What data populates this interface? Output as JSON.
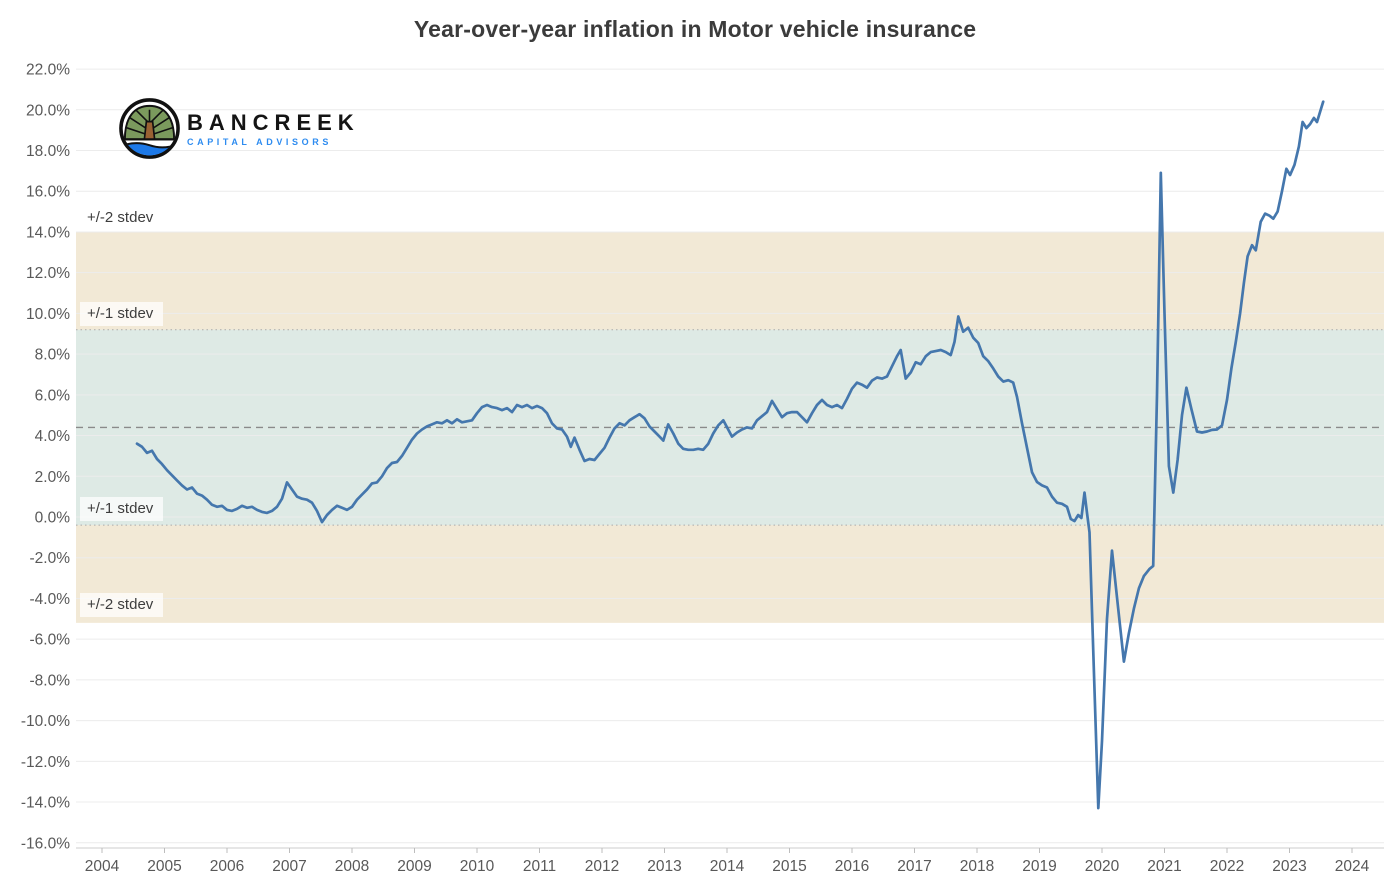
{
  "header": {
    "title": "Year-over-year inflation in Motor vehicle insurance"
  },
  "logo": {
    "name": "BANCREEK",
    "subtitle": "CAPITAL ADVISORS",
    "subtitle_color": "#2e8cf0",
    "icon": "tree-water-circle-logo"
  },
  "chart_data": {
    "type": "line",
    "title": "Year-over-year inflation in Motor vehicle insurance",
    "xlabel": "",
    "ylabel": "",
    "units": "%",
    "grid": true,
    "legend": false,
    "xlim": [
      2003.58,
      2024.5
    ],
    "ylim": [
      -16.3,
      22.6
    ],
    "x_ticks": [
      2004,
      2005,
      2006,
      2007,
      2008,
      2009,
      2010,
      2011,
      2012,
      2013,
      2014,
      2015,
      2016,
      2017,
      2018,
      2019,
      2020,
      2021,
      2022,
      2023,
      2024
    ],
    "x_tick_labels": [
      "2004",
      "2005",
      "2006",
      "2007",
      "2008",
      "2009",
      "2010",
      "2011",
      "2012",
      "2013",
      "2014",
      "2015",
      "2016",
      "2017",
      "2018",
      "2019",
      "2020",
      "2021",
      "2022",
      "2023",
      "2024"
    ],
    "y_ticks": [
      22,
      20,
      18,
      16,
      14,
      12,
      10,
      8,
      6,
      4,
      2,
      0,
      -2,
      -4,
      -6,
      -8,
      -10,
      -12,
      -14,
      -16
    ],
    "y_tick_labels": [
      "22.0%",
      "20.0%",
      "18.0%",
      "16.0%",
      "14.0%",
      "12.0%",
      "10.0%",
      "8.0%",
      "6.0%",
      "4.0%",
      "2.0%",
      "0.0%",
      "-2.0%",
      "-4.0%",
      "-6.0%",
      "-8.0%",
      "-10.0%",
      "-12.0%",
      "-14.0%",
      "-16.0%"
    ],
    "mean_line": {
      "value": 4.4,
      "style": "dashed",
      "color": "#8a8a8a"
    },
    "stdev": 4.8,
    "bands": [
      {
        "name": "plus-minus-2-stdev",
        "from": -5.2,
        "to": 14.0,
        "color": "#f2e9d6"
      },
      {
        "name": "plus-minus-1-stdev",
        "from": -0.4,
        "to": 9.2,
        "color": "#deeae5",
        "edge_dotted": true
      }
    ],
    "band_labels": [
      {
        "text": "+/-2 stdev",
        "at": 14.62
      },
      {
        "text": "+/-1 stdev",
        "at": 9.9
      },
      {
        "text": "+/-1 stdev",
        "at": 0.35
      },
      {
        "text": "+/-2 stdev",
        "at": -4.35
      }
    ],
    "series": [
      {
        "name": "Motor vehicle insurance YoY inflation (%)",
        "color": "#4577ad",
        "points": [
          [
            2004.56,
            3.6
          ],
          [
            2004.64,
            3.45
          ],
          [
            2004.72,
            3.15
          ],
          [
            2004.8,
            3.25
          ],
          [
            2004.88,
            2.85
          ],
          [
            2004.96,
            2.6
          ],
          [
            2005.04,
            2.3
          ],
          [
            2005.12,
            2.05
          ],
          [
            2005.2,
            1.8
          ],
          [
            2005.28,
            1.55
          ],
          [
            2005.36,
            1.35
          ],
          [
            2005.44,
            1.45
          ],
          [
            2005.52,
            1.15
          ],
          [
            2005.6,
            1.05
          ],
          [
            2005.68,
            0.85
          ],
          [
            2005.76,
            0.6
          ],
          [
            2005.84,
            0.5
          ],
          [
            2005.92,
            0.55
          ],
          [
            2006.0,
            0.35
          ],
          [
            2006.08,
            0.3
          ],
          [
            2006.16,
            0.4
          ],
          [
            2006.24,
            0.55
          ],
          [
            2006.32,
            0.45
          ],
          [
            2006.4,
            0.5
          ],
          [
            2006.48,
            0.35
          ],
          [
            2006.56,
            0.25
          ],
          [
            2006.64,
            0.2
          ],
          [
            2006.72,
            0.3
          ],
          [
            2006.8,
            0.5
          ],
          [
            2006.88,
            0.9
          ],
          [
            2006.96,
            1.7
          ],
          [
            2007.04,
            1.35
          ],
          [
            2007.12,
            1.0
          ],
          [
            2007.2,
            0.9
          ],
          [
            2007.28,
            0.85
          ],
          [
            2007.36,
            0.7
          ],
          [
            2007.44,
            0.3
          ],
          [
            2007.52,
            -0.25
          ],
          [
            2007.6,
            0.1
          ],
          [
            2007.68,
            0.35
          ],
          [
            2007.76,
            0.55
          ],
          [
            2007.84,
            0.45
          ],
          [
            2007.92,
            0.35
          ],
          [
            2008.0,
            0.5
          ],
          [
            2008.08,
            0.85
          ],
          [
            2008.16,
            1.1
          ],
          [
            2008.24,
            1.35
          ],
          [
            2008.32,
            1.65
          ],
          [
            2008.4,
            1.7
          ],
          [
            2008.48,
            2.0
          ],
          [
            2008.56,
            2.4
          ],
          [
            2008.64,
            2.65
          ],
          [
            2008.72,
            2.7
          ],
          [
            2008.8,
            3.0
          ],
          [
            2008.88,
            3.4
          ],
          [
            2008.96,
            3.8
          ],
          [
            2009.04,
            4.1
          ],
          [
            2009.12,
            4.3
          ],
          [
            2009.2,
            4.45
          ],
          [
            2009.28,
            4.55
          ],
          [
            2009.36,
            4.65
          ],
          [
            2009.44,
            4.6
          ],
          [
            2009.52,
            4.75
          ],
          [
            2009.6,
            4.6
          ],
          [
            2009.68,
            4.8
          ],
          [
            2009.76,
            4.65
          ],
          [
            2009.84,
            4.7
          ],
          [
            2009.92,
            4.75
          ],
          [
            2010.0,
            5.1
          ],
          [
            2010.08,
            5.4
          ],
          [
            2010.16,
            5.5
          ],
          [
            2010.24,
            5.4
          ],
          [
            2010.32,
            5.35
          ],
          [
            2010.4,
            5.25
          ],
          [
            2010.48,
            5.35
          ],
          [
            2010.56,
            5.15
          ],
          [
            2010.64,
            5.5
          ],
          [
            2010.72,
            5.4
          ],
          [
            2010.8,
            5.5
          ],
          [
            2010.88,
            5.35
          ],
          [
            2010.96,
            5.45
          ],
          [
            2011.04,
            5.35
          ],
          [
            2011.12,
            5.1
          ],
          [
            2011.2,
            4.6
          ],
          [
            2011.28,
            4.35
          ],
          [
            2011.36,
            4.3
          ],
          [
            2011.44,
            3.95
          ],
          [
            2011.5,
            3.45
          ],
          [
            2011.56,
            3.9
          ],
          [
            2011.64,
            3.3
          ],
          [
            2011.72,
            2.75
          ],
          [
            2011.8,
            2.85
          ],
          [
            2011.88,
            2.8
          ],
          [
            2011.96,
            3.1
          ],
          [
            2012.04,
            3.4
          ],
          [
            2012.12,
            3.9
          ],
          [
            2012.2,
            4.35
          ],
          [
            2012.28,
            4.6
          ],
          [
            2012.36,
            4.5
          ],
          [
            2012.44,
            4.75
          ],
          [
            2012.52,
            4.9
          ],
          [
            2012.6,
            5.05
          ],
          [
            2012.68,
            4.85
          ],
          [
            2012.76,
            4.45
          ],
          [
            2012.84,
            4.2
          ],
          [
            2012.92,
            3.95
          ],
          [
            2012.98,
            3.75
          ],
          [
            2013.06,
            4.55
          ],
          [
            2013.14,
            4.1
          ],
          [
            2013.22,
            3.6
          ],
          [
            2013.3,
            3.35
          ],
          [
            2013.38,
            3.3
          ],
          [
            2013.46,
            3.3
          ],
          [
            2013.54,
            3.35
          ],
          [
            2013.62,
            3.3
          ],
          [
            2013.7,
            3.6
          ],
          [
            2013.78,
            4.1
          ],
          [
            2013.86,
            4.5
          ],
          [
            2013.94,
            4.75
          ],
          [
            2014.02,
            4.3
          ],
          [
            2014.08,
            3.95
          ],
          [
            2014.16,
            4.15
          ],
          [
            2014.24,
            4.3
          ],
          [
            2014.32,
            4.4
          ],
          [
            2014.4,
            4.35
          ],
          [
            2014.48,
            4.75
          ],
          [
            2014.56,
            4.95
          ],
          [
            2014.64,
            5.15
          ],
          [
            2014.72,
            5.7
          ],
          [
            2014.8,
            5.3
          ],
          [
            2014.88,
            4.9
          ],
          [
            2014.96,
            5.1
          ],
          [
            2015.04,
            5.15
          ],
          [
            2015.12,
            5.15
          ],
          [
            2015.2,
            4.9
          ],
          [
            2015.28,
            4.65
          ],
          [
            2015.36,
            5.1
          ],
          [
            2015.44,
            5.5
          ],
          [
            2015.52,
            5.75
          ],
          [
            2015.6,
            5.5
          ],
          [
            2015.68,
            5.4
          ],
          [
            2015.76,
            5.5
          ],
          [
            2015.84,
            5.35
          ],
          [
            2015.92,
            5.8
          ],
          [
            2016.0,
            6.3
          ],
          [
            2016.08,
            6.6
          ],
          [
            2016.16,
            6.5
          ],
          [
            2016.24,
            6.35
          ],
          [
            2016.32,
            6.7
          ],
          [
            2016.4,
            6.85
          ],
          [
            2016.48,
            6.8
          ],
          [
            2016.56,
            6.9
          ],
          [
            2016.64,
            7.4
          ],
          [
            2016.72,
            7.9
          ],
          [
            2016.78,
            8.2
          ],
          [
            2016.86,
            6.8
          ],
          [
            2016.94,
            7.1
          ],
          [
            2017.02,
            7.6
          ],
          [
            2017.1,
            7.5
          ],
          [
            2017.18,
            7.9
          ],
          [
            2017.26,
            8.1
          ],
          [
            2017.34,
            8.15
          ],
          [
            2017.42,
            8.2
          ],
          [
            2017.5,
            8.1
          ],
          [
            2017.58,
            7.95
          ],
          [
            2017.64,
            8.6
          ],
          [
            2017.7,
            9.85
          ],
          [
            2017.78,
            9.1
          ],
          [
            2017.86,
            9.3
          ],
          [
            2017.94,
            8.8
          ],
          [
            2018.02,
            8.55
          ],
          [
            2018.1,
            7.9
          ],
          [
            2018.18,
            7.65
          ],
          [
            2018.26,
            7.3
          ],
          [
            2018.34,
            6.9
          ],
          [
            2018.42,
            6.65
          ],
          [
            2018.5,
            6.72
          ],
          [
            2018.58,
            6.6
          ],
          [
            2018.64,
            5.9
          ],
          [
            2018.72,
            4.6
          ],
          [
            2018.8,
            3.4
          ],
          [
            2018.88,
            2.2
          ],
          [
            2018.96,
            1.72
          ],
          [
            2019.04,
            1.55
          ],
          [
            2019.12,
            1.45
          ],
          [
            2019.2,
            1.0
          ],
          [
            2019.28,
            0.7
          ],
          [
            2019.36,
            0.65
          ],
          [
            2019.44,
            0.5
          ],
          [
            2019.5,
            -0.1
          ],
          [
            2019.56,
            -0.2
          ],
          [
            2019.62,
            0.1
          ],
          [
            2019.67,
            -0.05
          ],
          [
            2019.72,
            1.2
          ],
          [
            2019.76,
            0.2
          ],
          [
            2019.8,
            -0.75
          ],
          [
            2019.86,
            -6.5
          ],
          [
            2019.94,
            -14.3
          ],
          [
            2020.0,
            -11.0
          ],
          [
            2020.08,
            -5.0
          ],
          [
            2020.16,
            -1.65
          ],
          [
            2020.26,
            -4.5
          ],
          [
            2020.35,
            -7.1
          ],
          [
            2020.43,
            -5.7
          ],
          [
            2020.51,
            -4.5
          ],
          [
            2020.59,
            -3.5
          ],
          [
            2020.67,
            -2.9
          ],
          [
            2020.76,
            -2.55
          ],
          [
            2020.82,
            -2.4
          ],
          [
            2020.88,
            6.0
          ],
          [
            2020.94,
            16.9
          ],
          [
            2021.0,
            10.0
          ],
          [
            2021.07,
            2.5
          ],
          [
            2021.14,
            1.2
          ],
          [
            2021.21,
            2.8
          ],
          [
            2021.28,
            5.0
          ],
          [
            2021.35,
            6.35
          ],
          [
            2021.43,
            5.3
          ],
          [
            2021.52,
            4.2
          ],
          [
            2021.6,
            4.15
          ],
          [
            2021.68,
            4.2
          ],
          [
            2021.76,
            4.28
          ],
          [
            2021.84,
            4.3
          ],
          [
            2021.92,
            4.5
          ],
          [
            2022.0,
            5.75
          ],
          [
            2022.07,
            7.3
          ],
          [
            2022.14,
            8.6
          ],
          [
            2022.21,
            10.0
          ],
          [
            2022.27,
            11.5
          ],
          [
            2022.33,
            12.8
          ],
          [
            2022.4,
            13.35
          ],
          [
            2022.46,
            13.1
          ],
          [
            2022.54,
            14.5
          ],
          [
            2022.61,
            14.9
          ],
          [
            2022.68,
            14.8
          ],
          [
            2022.74,
            14.65
          ],
          [
            2022.81,
            15.0
          ],
          [
            2022.88,
            16.0
          ],
          [
            2022.95,
            17.1
          ],
          [
            2023.01,
            16.8
          ],
          [
            2023.08,
            17.3
          ],
          [
            2023.15,
            18.2
          ],
          [
            2023.21,
            19.4
          ],
          [
            2023.27,
            19.1
          ],
          [
            2023.33,
            19.3
          ],
          [
            2023.39,
            19.6
          ],
          [
            2023.44,
            19.4
          ],
          [
            2023.49,
            19.9
          ],
          [
            2023.54,
            20.4
          ]
        ]
      }
    ]
  }
}
